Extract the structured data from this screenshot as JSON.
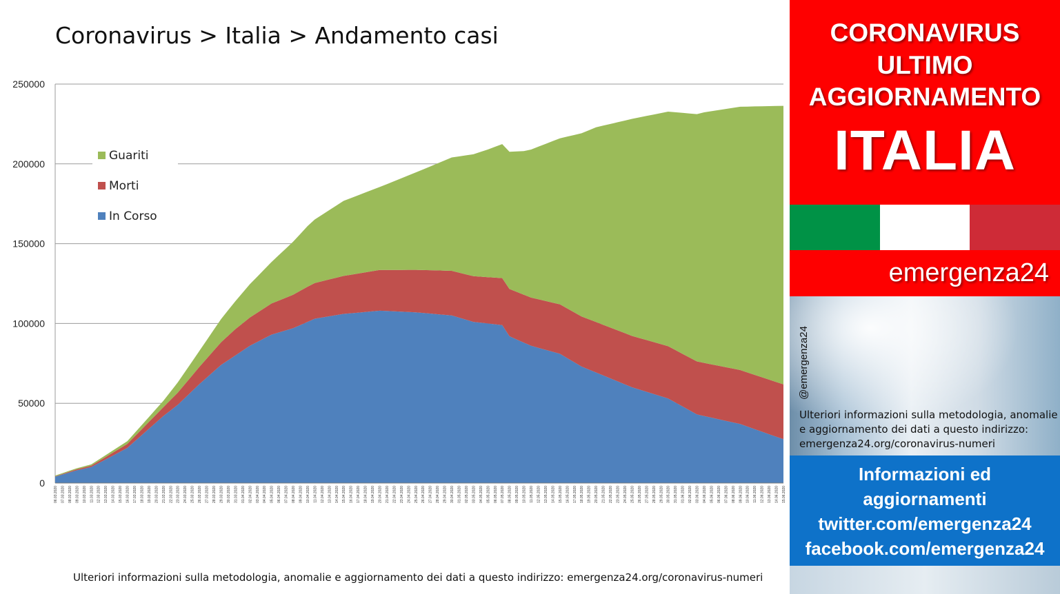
{
  "chart_data": {
    "type": "area",
    "stacked": true,
    "title": "Coronavirus > Italia > Andamento casi",
    "xlabel": "",
    "ylabel": "",
    "ylim": [
      0,
      250000
    ],
    "yticks": [
      0,
      50000,
      100000,
      150000,
      200000,
      250000
    ],
    "grid": true,
    "legend_position": "top-left",
    "x_start": "06.03.2020",
    "x_end": "15.06.2020",
    "x_step_days": 1,
    "series": [
      {
        "name": "In Corso",
        "color": "#4f81bd",
        "anchors": [
          [
            0,
            4000
          ],
          [
            3,
            8000
          ],
          [
            5,
            10000
          ],
          [
            10,
            22000
          ],
          [
            15,
            42000
          ],
          [
            17,
            49000
          ],
          [
            20,
            62000
          ],
          [
            23,
            74000
          ],
          [
            27,
            86000
          ],
          [
            30,
            93000
          ],
          [
            33,
            97000
          ],
          [
            36,
            103000
          ],
          [
            40,
            106000
          ],
          [
            45,
            108000
          ],
          [
            50,
            107000
          ],
          [
            55,
            105000
          ],
          [
            58,
            101000
          ],
          [
            62,
            99000
          ],
          [
            63,
            92000
          ],
          [
            66,
            86000
          ],
          [
            70,
            81000
          ],
          [
            73,
            73000
          ],
          [
            80,
            60000
          ],
          [
            85,
            53000
          ],
          [
            89,
            43000
          ],
          [
            95,
            37000
          ],
          [
            100,
            29000
          ],
          [
            102,
            26000
          ]
        ]
      },
      {
        "name": "Morti",
        "color": "#c0504d",
        "anchors": [
          [
            0,
            200
          ],
          [
            5,
            900
          ],
          [
            10,
            2500
          ],
          [
            15,
            5500
          ],
          [
            20,
            10800
          ],
          [
            25,
            16500
          ],
          [
            30,
            19500
          ],
          [
            35,
            22000
          ],
          [
            40,
            23800
          ],
          [
            45,
            25500
          ],
          [
            50,
            26600
          ],
          [
            55,
            28000
          ],
          [
            60,
            29000
          ],
          [
            65,
            30000
          ],
          [
            70,
            31000
          ],
          [
            80,
            32200
          ],
          [
            90,
            33300
          ],
          [
            100,
            34300
          ],
          [
            102,
            34400
          ]
        ]
      },
      {
        "name": "Guariti",
        "color": "#9bbb59",
        "anchors": [
          [
            0,
            500
          ],
          [
            5,
            800
          ],
          [
            10,
            1700
          ],
          [
            15,
            4000
          ],
          [
            20,
            10000
          ],
          [
            25,
            17500
          ],
          [
            30,
            26000
          ],
          [
            35,
            38000
          ],
          [
            40,
            47000
          ],
          [
            45,
            52000
          ],
          [
            50,
            61000
          ],
          [
            55,
            71000
          ],
          [
            60,
            80000
          ],
          [
            65,
            90000
          ],
          [
            70,
            104000
          ],
          [
            75,
            122000
          ],
          [
            80,
            136000
          ],
          [
            85,
            147000
          ],
          [
            90,
            157000
          ],
          [
            95,
            165000
          ],
          [
            100,
            173000
          ],
          [
            102,
            176000
          ]
        ]
      }
    ]
  },
  "panel": {
    "headline": [
      "CORONAVIRUS",
      "ULTIMO",
      "AGGIORNAMENTO",
      "ITALIA"
    ],
    "brand": "emergenza24",
    "handle": "@emergenza24",
    "note_lines": [
      "Ulteriori informazioni sulla metodologia, anomalie",
      "e aggiornamento dei dati a questo indirizzo:",
      "emergenza24.org/coronavirus-numeri"
    ],
    "info_lines": [
      "Informazioni ed",
      "aggiornamenti",
      "twitter.com/emergenza24",
      "facebook.com/emergenza24"
    ]
  },
  "footer": {
    "note": "Ulteriori informazioni sulla metodologia, anomalie e aggiornamento dei dati a questo indirizzo: emergenza24.org/coronavirus-numeri"
  }
}
